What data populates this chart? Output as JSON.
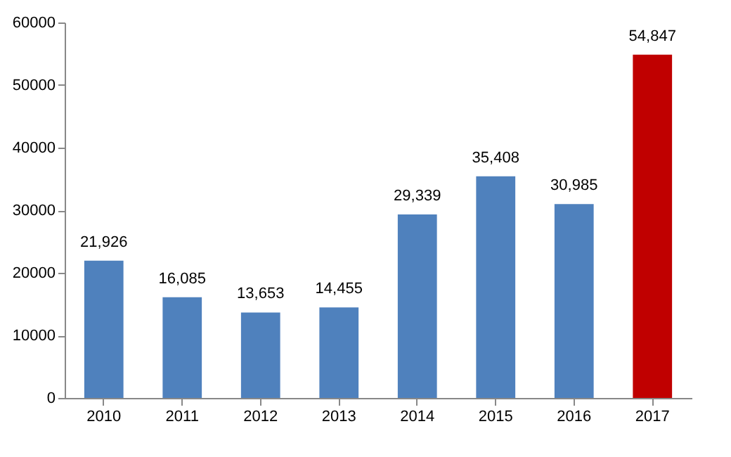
{
  "chart_data": {
    "type": "bar",
    "categories": [
      "2010",
      "2011",
      "2012",
      "2013",
      "2014",
      "2015",
      "2016",
      "2017"
    ],
    "values": [
      21926,
      16085,
      13653,
      14455,
      29339,
      35408,
      30985,
      54847
    ],
    "value_labels": [
      "21,926",
      "16,085",
      "13,653",
      "14,455",
      "29,339",
      "35,408",
      "30,985",
      "54,847"
    ],
    "colors": [
      "#4f81bd",
      "#4f81bd",
      "#4f81bd",
      "#4f81bd",
      "#4f81bd",
      "#4f81bd",
      "#4f81bd",
      "#c00000"
    ],
    "ylim": [
      0,
      60000
    ],
    "yticks": [
      0,
      10000,
      20000,
      30000,
      40000,
      50000,
      60000
    ],
    "grid": false
  }
}
